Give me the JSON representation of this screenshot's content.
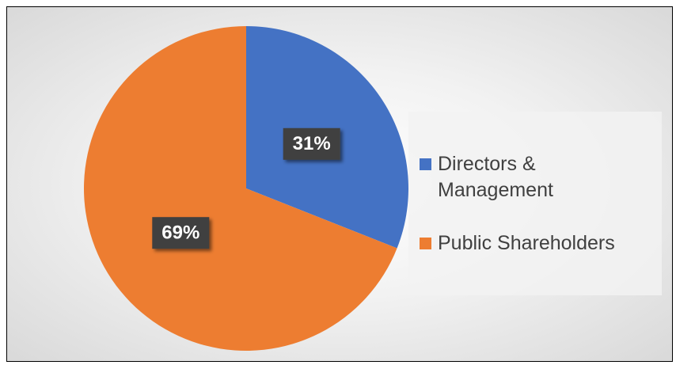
{
  "chart_data": {
    "type": "pie",
    "categories": [
      "Directors & Management",
      "Public Shareholders"
    ],
    "values": [
      31,
      69
    ],
    "value_labels": [
      "31%",
      "69%"
    ],
    "colors": [
      "#4472c4",
      "#ed7d31"
    ],
    "legend": "right"
  }
}
